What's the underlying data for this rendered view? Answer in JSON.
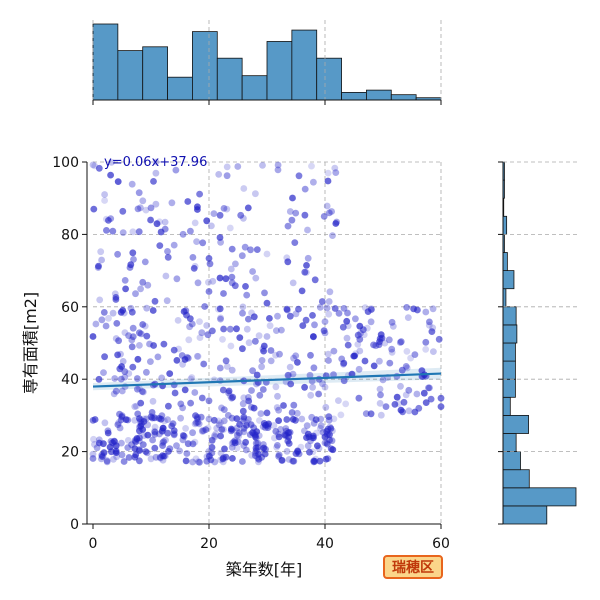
{
  "chart_data": {
    "type": "scatter",
    "xlabel": "築年数[年]",
    "ylabel": "専有面積[m2]",
    "xlim": [
      0,
      60
    ],
    "ylim": [
      0,
      100
    ],
    "xticks": [
      "0",
      "20",
      "40",
      "60"
    ],
    "yticks": [
      "0",
      "20",
      "40",
      "60",
      "80",
      "100"
    ],
    "grid": true,
    "regression": {
      "slope": 0.06,
      "intercept": 37.96,
      "label": "y=0.06x+37.96"
    },
    "badge": "瑞穂区",
    "x_hist_counts": [
      1.0,
      0.65,
      0.7,
      0.3,
      0.9,
      0.55,
      0.32,
      0.77,
      0.92,
      0.55,
      0.1,
      0.13,
      0.07,
      0.03
    ],
    "y_hist_counts": [
      0.6,
      1.0,
      0.36,
      0.24,
      0.18,
      0.35,
      0.1,
      0.17,
      0.17,
      0.17,
      0.19,
      0.18,
      0.04,
      0.15,
      0.06,
      0.02,
      0.05,
      0.01,
      0.02,
      0.02
    ],
    "point_groups": [
      {
        "x_min": 0,
        "x_max": 42,
        "y_min": 17,
        "y_max": 30,
        "n": 330
      },
      {
        "x_min": 0,
        "x_max": 60,
        "y_min": 30,
        "y_max": 60,
        "n": 340
      },
      {
        "x_min": 0,
        "x_max": 43,
        "y_min": 60,
        "y_max": 100,
        "n": 160
      }
    ]
  },
  "colors": {
    "scatter": "#2323c8",
    "hist_fill": "#5799c7",
    "regression": "#1f77b4",
    "badge_fill": "#fbd58a",
    "badge_border": "#e8651d",
    "badge_text": "#c0390b"
  }
}
